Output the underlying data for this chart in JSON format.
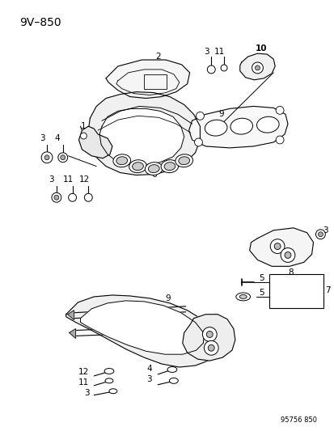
{
  "title": "9V–850",
  "bg": "#ffffff",
  "lc": "#000000",
  "watermark": "95756 850",
  "fw": 4.14,
  "fh": 5.33,
  "dpi": 100
}
